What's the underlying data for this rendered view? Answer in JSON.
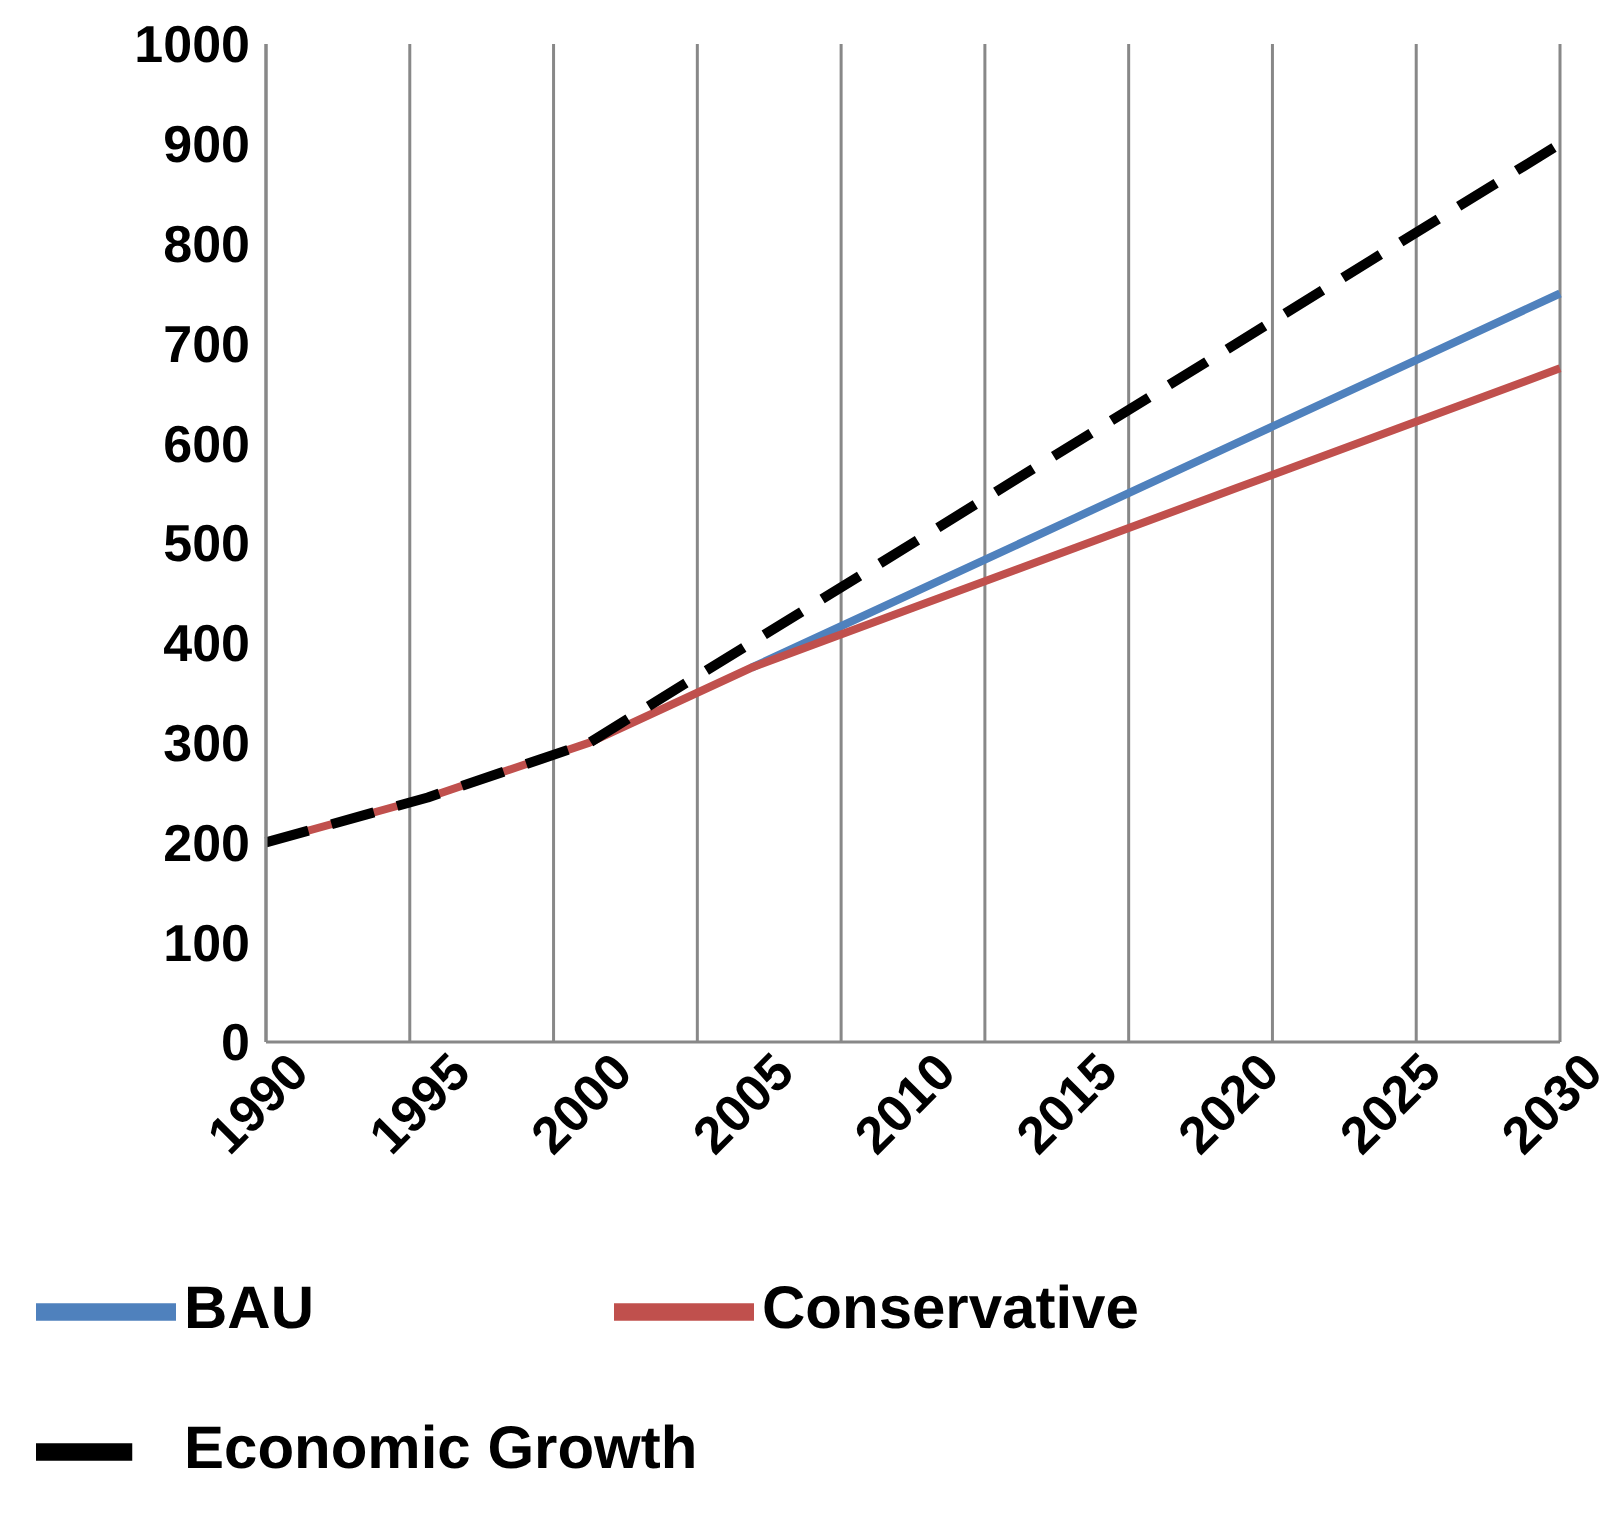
{
  "chart_data": {
    "type": "line",
    "categories": [
      "1990",
      "1995",
      "2000",
      "2005",
      "2010",
      "2015",
      "2020",
      "2025",
      "2030"
    ],
    "series": [
      {
        "name": "BAU",
        "color": "#4f81bd",
        "values": [
          null,
          null,
          null,
          375,
          450,
          525,
          600,
          675,
          750
        ],
        "line_style": "solid"
      },
      {
        "name": "Conservative",
        "color": "#c0504d",
        "values": [
          200,
          245,
          300,
          375,
          435,
          495,
          555,
          615,
          675
        ],
        "line_style": "solid"
      },
      {
        "name": "Economic Growth",
        "color": "#000000",
        "values": [
          200,
          245,
          300,
          400,
          500,
          600,
          700,
          800,
          900
        ],
        "line_style": "dashed"
      }
    ],
    "ylim": [
      0,
      1000
    ],
    "yticks": [
      0,
      100,
      200,
      300,
      400,
      500,
      600,
      700,
      800,
      900,
      1000
    ],
    "grid": "x",
    "legend": "bottom",
    "marker": "none"
  }
}
